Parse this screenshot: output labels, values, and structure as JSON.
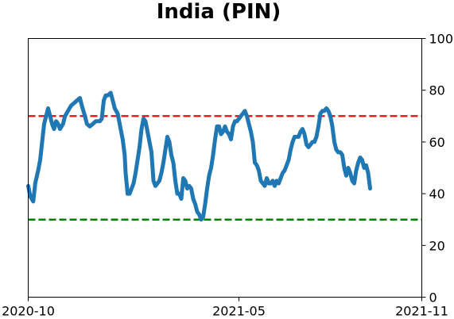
{
  "chart_data": {
    "type": "line",
    "title": "India (PIN)",
    "xlabel": "",
    "ylabel": "",
    "x_ticks": [
      "2020-10",
      "2021-05",
      "2021-11"
    ],
    "x_tick_values": [
      0,
      212,
      396
    ],
    "y_ticks": [
      "0",
      "20",
      "40",
      "60",
      "80",
      "100"
    ],
    "y_tick_values": [
      0,
      20,
      40,
      60,
      80,
      100
    ],
    "xlim": [
      0,
      396
    ],
    "ylim": [
      0,
      100
    ],
    "y_axis_side": "right",
    "grid": false,
    "legend": "none",
    "reference_lines": [
      {
        "y": 70,
        "color": "#d62728",
        "style": "dashed"
      },
      {
        "y": 30,
        "color": "#008000",
        "style": "dashed"
      }
    ],
    "series": [
      {
        "color": "#1f77b4",
        "points": [
          [
            0,
            43
          ],
          [
            2,
            39
          ],
          [
            5,
            37
          ],
          [
            7,
            44
          ],
          [
            10,
            49
          ],
          [
            12,
            53
          ],
          [
            14,
            60
          ],
          [
            16,
            67
          ],
          [
            18,
            70
          ],
          [
            20,
            73
          ],
          [
            22,
            70
          ],
          [
            24,
            67
          ],
          [
            26,
            65
          ],
          [
            28,
            68
          ],
          [
            30,
            67
          ],
          [
            32,
            65
          ],
          [
            35,
            67
          ],
          [
            37,
            70
          ],
          [
            40,
            72
          ],
          [
            43,
            74
          ],
          [
            46,
            75
          ],
          [
            49,
            76
          ],
          [
            52,
            77
          ],
          [
            54,
            74
          ],
          [
            57,
            70
          ],
          [
            59,
            67
          ],
          [
            62,
            66
          ],
          [
            65,
            67
          ],
          [
            68,
            68
          ],
          [
            72,
            68
          ],
          [
            74,
            69
          ],
          [
            76,
            76
          ],
          [
            78,
            78
          ],
          [
            80,
            78
          ],
          [
            83,
            79
          ],
          [
            85,
            76
          ],
          [
            87,
            73
          ],
          [
            90,
            71
          ],
          [
            92,
            67
          ],
          [
            95,
            61
          ],
          [
            97,
            55
          ],
          [
            98,
            48
          ],
          [
            100,
            40
          ],
          [
            102,
            40
          ],
          [
            104,
            42
          ],
          [
            106,
            44
          ],
          [
            108,
            48
          ],
          [
            110,
            53
          ],
          [
            112,
            58
          ],
          [
            114,
            65
          ],
          [
            116,
            69
          ],
          [
            118,
            68
          ],
          [
            120,
            64
          ],
          [
            122,
            60
          ],
          [
            124,
            56
          ],
          [
            126,
            45
          ],
          [
            128,
            43
          ],
          [
            130,
            44
          ],
          [
            132,
            45
          ],
          [
            134,
            48
          ],
          [
            136,
            52
          ],
          [
            138,
            57
          ],
          [
            140,
            62
          ],
          [
            142,
            60
          ],
          [
            144,
            55
          ],
          [
            146,
            52
          ],
          [
            148,
            45
          ],
          [
            150,
            40
          ],
          [
            152,
            40
          ],
          [
            154,
            38
          ],
          [
            156,
            46
          ],
          [
            158,
            45
          ],
          [
            160,
            42
          ],
          [
            162,
            43
          ],
          [
            164,
            42
          ],
          [
            166,
            38
          ],
          [
            168,
            36
          ],
          [
            170,
            33
          ],
          [
            172,
            32
          ],
          [
            174,
            30
          ],
          [
            176,
            31
          ],
          [
            178,
            36
          ],
          [
            180,
            42
          ],
          [
            182,
            47
          ],
          [
            184,
            50
          ],
          [
            186,
            55
          ],
          [
            188,
            61
          ],
          [
            190,
            66
          ],
          [
            192,
            66
          ],
          [
            194,
            63
          ],
          [
            196,
            64
          ],
          [
            198,
            66
          ],
          [
            200,
            64
          ],
          [
            202,
            63
          ],
          [
            204,
            61
          ],
          [
            206,
            66
          ],
          [
            208,
            68
          ],
          [
            210,
            68
          ],
          [
            212,
            69
          ],
          [
            214,
            70
          ],
          [
            216,
            71
          ],
          [
            218,
            72
          ],
          [
            220,
            70
          ],
          [
            222,
            67
          ],
          [
            224,
            64
          ],
          [
            226,
            60
          ],
          [
            228,
            52
          ],
          [
            230,
            51
          ],
          [
            232,
            49
          ],
          [
            234,
            45
          ],
          [
            236,
            44
          ],
          [
            238,
            43
          ],
          [
            240,
            46
          ],
          [
            242,
            44
          ],
          [
            244,
            44
          ],
          [
            246,
            45
          ],
          [
            248,
            43
          ],
          [
            250,
            45
          ],
          [
            252,
            44
          ],
          [
            254,
            46
          ],
          [
            256,
            48
          ],
          [
            258,
            49
          ],
          [
            260,
            51
          ],
          [
            262,
            53
          ],
          [
            264,
            57
          ],
          [
            266,
            60
          ],
          [
            268,
            62
          ],
          [
            270,
            62
          ],
          [
            272,
            62
          ],
          [
            274,
            64
          ],
          [
            276,
            65
          ],
          [
            278,
            63
          ],
          [
            280,
            59
          ],
          [
            282,
            58
          ],
          [
            284,
            59
          ],
          [
            286,
            60
          ],
          [
            288,
            60
          ],
          [
            290,
            62
          ],
          [
            292,
            66
          ],
          [
            294,
            71
          ],
          [
            296,
            72
          ],
          [
            298,
            72
          ],
          [
            300,
            73
          ],
          [
            302,
            72
          ],
          [
            304,
            70
          ],
          [
            306,
            66
          ],
          [
            308,
            60
          ],
          [
            310,
            57
          ],
          [
            312,
            56
          ],
          [
            314,
            56
          ],
          [
            316,
            55
          ],
          [
            318,
            50
          ],
          [
            320,
            47
          ],
          [
            322,
            50
          ],
          [
            324,
            48
          ],
          [
            326,
            45
          ],
          [
            328,
            44
          ],
          [
            330,
            49
          ],
          [
            332,
            52
          ],
          [
            334,
            54
          ],
          [
            336,
            53
          ],
          [
            338,
            50
          ],
          [
            340,
            51
          ],
          [
            342,
            48
          ],
          [
            344,
            42
          ]
        ]
      }
    ]
  }
}
